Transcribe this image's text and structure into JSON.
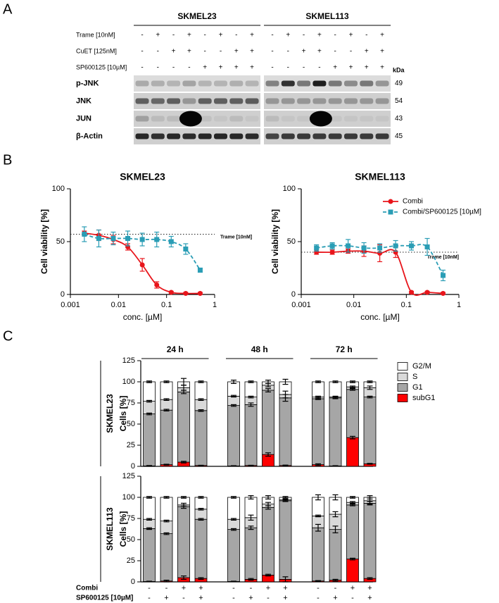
{
  "panel_labels": [
    "A",
    "B",
    "C"
  ],
  "blot": {
    "cell_lines": [
      "SKMEL23",
      "SKMEL113"
    ],
    "treatments": [
      {
        "label": "Trame [10nM]",
        "signs": [
          "-",
          "+",
          "-",
          "+",
          "-",
          "+",
          "-",
          "+",
          "-",
          "+",
          "-",
          "+",
          "-",
          "+",
          "-",
          "+"
        ]
      },
      {
        "label": "CuET [125nM]",
        "signs": [
          "-",
          "-",
          "+",
          "+",
          "-",
          "-",
          "+",
          "+",
          "-",
          "-",
          "+",
          "+",
          "-",
          "-",
          "+",
          "+"
        ]
      },
      {
        "label": "SP600125 [10µM]",
        "signs": [
          "-",
          "-",
          "-",
          "-",
          "+",
          "+",
          "+",
          "+",
          "-",
          "-",
          "-",
          "-",
          "+",
          "+",
          "+",
          "+"
        ]
      }
    ],
    "kda_label": "kDa",
    "rows": [
      {
        "label": "p-JNK",
        "kda": 49
      },
      {
        "label": "JNK",
        "kda": 54
      },
      {
        "label": "JUN",
        "kda": 43
      },
      {
        "label": "β-Actin",
        "kda": 45
      }
    ]
  },
  "chart_data": [
    {
      "type": "dose_response",
      "title": "SKMEL23",
      "xlabel": "conc. [µM]",
      "ylabel": "Cell viability [%]",
      "log_x": true,
      "xlim": [
        0.001,
        1
      ],
      "xticks": [
        0.001,
        0.01,
        0.1,
        1
      ],
      "ylim": [
        0,
        100
      ],
      "yticks": [
        0,
        50,
        100
      ],
      "x": [
        0.00195,
        0.0039,
        0.0078,
        0.0156,
        0.03125,
        0.0625,
        0.125,
        0.25,
        0.5
      ],
      "series": [
        {
          "color": "#e8151b",
          "marker": "circle",
          "line": "solid",
          "values": [
            58,
            56,
            52,
            45,
            28,
            9,
            2,
            1,
            1
          ],
          "errors": [
            2,
            5,
            4,
            3,
            6,
            3,
            1,
            1,
            1
          ]
        },
        {
          "color": "#2a9db5",
          "marker": "square",
          "line": "dashed",
          "values": [
            57,
            53,
            53,
            53,
            52,
            52,
            50,
            43,
            23
          ],
          "errors": [
            7,
            8,
            6,
            7,
            6,
            7,
            5,
            5,
            2
          ]
        }
      ],
      "reference": {
        "label": "Trame [10nM]",
        "value": 57
      }
    },
    {
      "type": "dose_response",
      "title": "SKMEL113",
      "xlabel": "conc. [µM]",
      "ylabel": "Cell viability [%]",
      "log_x": true,
      "xlim": [
        0.001,
        1
      ],
      "xticks": [
        0.001,
        0.01,
        0.1,
        1
      ],
      "ylim": [
        0,
        100
      ],
      "yticks": [
        0,
        50,
        100
      ],
      "x": [
        0.00195,
        0.0039,
        0.0078,
        0.0156,
        0.03125,
        0.0625,
        0.125,
        0.25,
        0.5
      ],
      "series": [
        {
          "name": "Combi",
          "color": "#e8151b",
          "marker": "circle",
          "line": "solid",
          "values": [
            40,
            40,
            41,
            41,
            39,
            40,
            2,
            2,
            1
          ],
          "errors": [
            2,
            2,
            2,
            5,
            8,
            5,
            1,
            1,
            1
          ]
        },
        {
          "name": "Combi/SP600125 [10µM]",
          "color": "#2a9db5",
          "marker": "square",
          "line": "dashed",
          "values": [
            44,
            46,
            46,
            44,
            44,
            46,
            46,
            45,
            18
          ],
          "errors": [
            3,
            3,
            6,
            5,
            4,
            5,
            4,
            8,
            5
          ]
        }
      ],
      "reference": {
        "label": "Trame [10nM]",
        "value": 40
      },
      "legend": "upper right"
    },
    {
      "type": "stacked_bar",
      "ylabel": "Cells [%]",
      "ylim": [
        0,
        125
      ],
      "yticks": [
        0,
        25,
        50,
        75,
        100,
        125
      ],
      "groups": [
        "24 h",
        "48 h",
        "72 h"
      ],
      "conditions": [
        {
          "label": "Combi",
          "signs": [
            "-",
            "-",
            "+",
            "+",
            "-",
            "-",
            "+",
            "+",
            "-",
            "-",
            "+",
            "+"
          ]
        },
        {
          "label": "SP600125 [10µM]",
          "signs": [
            "-",
            "+",
            "-",
            "+",
            "-",
            "+",
            "-",
            "+",
            "-",
            "+",
            "-",
            "+"
          ]
        }
      ],
      "series": [
        {
          "name": "G2/M",
          "color": "#ffffff"
        },
        {
          "name": "S",
          "color": "#d9d9d9"
        },
        {
          "name": "G1",
          "color": "#a6a6a6"
        },
        {
          "name": "subG1",
          "color": "#ff0000"
        }
      ],
      "facets": [
        {
          "label": "SKMEL23",
          "values": [
            [
              23,
              21,
              7,
              21,
              17,
              18,
              4,
              15,
              18,
              18,
              6,
              7
            ],
            [
              15,
              12.5,
              5,
              13,
              11,
              9,
              6,
              4,
              2,
              1,
              3,
              11
            ],
            [
              61.5,
              64.5,
              83,
              65,
              71.5,
              72,
              76,
              80,
              78,
              80.5,
              57,
              79
            ],
            [
              0.5,
              2,
              5,
              1,
              0.5,
              1,
              14,
              1,
              2,
              0.5,
              34,
              3
            ]
          ],
          "errors": [
            [
              1,
              1,
              4,
              1,
              2,
              1,
              2,
              3,
              1,
              1,
              1,
              1
            ],
            [
              1,
              1,
              3,
              1,
              1,
              1,
              2,
              4,
              1,
              1,
              1,
              2
            ],
            [
              1,
              1,
              2,
              1,
              1,
              2,
              2,
              4,
              1,
              1,
              1,
              1
            ],
            [
              0.5,
              0.5,
              1,
              0.3,
              0.3,
              0.3,
              2,
              0.5,
              1,
              0.3,
              1.5,
              0.5
            ]
          ]
        },
        {
          "label": "SKMEL113",
          "values": [
            [
              26,
              28,
              9,
              14,
              26,
              24,
              8,
              3,
              22,
              20,
              6,
              4
            ],
            [
              11,
              15,
              2,
              12,
              12,
              12,
              4,
              1,
              14,
              18,
              3,
              3
            ],
            [
              62.5,
              56,
              84,
              70,
              61.5,
              61,
              80,
              93,
              63,
              60,
              64,
              89
            ],
            [
              0.5,
              1,
              5,
              4,
              0.5,
              3,
              8,
              3,
              1,
              2,
              27,
              4
            ]
          ],
          "errors": [
            [
              1,
              1,
              1,
              1,
              1,
              2,
              2,
              1,
              3,
              3,
              1,
              2
            ],
            [
              1,
              1,
              2,
              1,
              1,
              3,
              2,
              1,
              1,
              3,
              1,
              4
            ],
            [
              1,
              1,
              2,
              1,
              1,
              2,
              2,
              1,
              4,
              4,
              1,
              2
            ],
            [
              0.3,
              1,
              2,
              1,
              0.3,
              1,
              1,
              3,
              0.5,
              1,
              1,
              1
            ]
          ]
        }
      ]
    }
  ]
}
